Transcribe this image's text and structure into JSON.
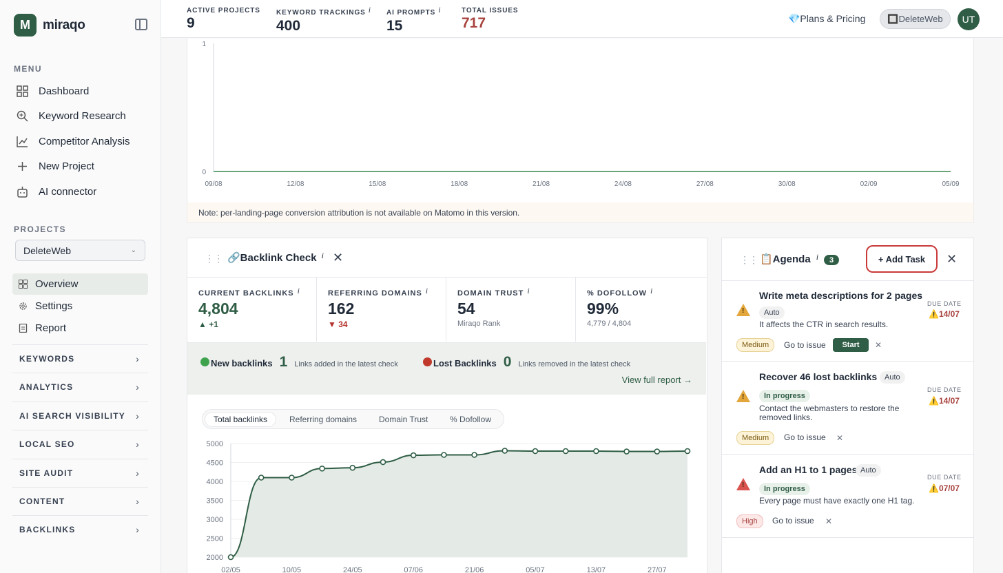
{
  "brand": {
    "logo_letter": "M",
    "name": "miraqo"
  },
  "sidebar": {
    "menu_label": "MENU",
    "menu": [
      {
        "label": "Dashboard",
        "icon": "grid-icon"
      },
      {
        "label": "Keyword Research",
        "icon": "search-icon"
      },
      {
        "label": "Competitor Analysis",
        "icon": "chart-line-icon"
      },
      {
        "label": "New Project",
        "icon": "plus-icon"
      },
      {
        "label": "AI connector",
        "icon": "bot-icon"
      }
    ],
    "projects_label": "PROJECTS",
    "project_selected": "DeleteWeb",
    "project_items": [
      {
        "label": "Overview",
        "active": true
      },
      {
        "label": "Settings",
        "active": false
      },
      {
        "label": "Report",
        "active": false
      }
    ],
    "groups": [
      "KEYWORDS",
      "ANALYTICS",
      "AI SEARCH VISIBILITY",
      "LOCAL SEO",
      "SITE AUDIT",
      "CONTENT",
      "BACKLINKS"
    ]
  },
  "topbar": {
    "stats": [
      {
        "label": "ACTIVE PROJECTS",
        "value": "9",
        "info": ""
      },
      {
        "label": "KEYWORD TRACKINGS",
        "value": "400",
        "info": "i"
      },
      {
        "label": "AI PROMPTS",
        "value": "15",
        "info": "i"
      },
      {
        "label": "TOTAL ISSUES",
        "value": "717",
        "info": ""
      }
    ],
    "plans": "💎Plans & Pricing",
    "site": "🔲DeleteWeb",
    "avatar": "UT"
  },
  "conv_chart": {
    "y_ticks": [
      "1",
      "0"
    ],
    "x_ticks": [
      "09/08",
      "12/08",
      "15/08",
      "18/08",
      "21/08",
      "24/08",
      "27/08",
      "30/08",
      "02/09",
      "05/09"
    ],
    "values": [
      0,
      0,
      0,
      0,
      0,
      0,
      0,
      0,
      0,
      0
    ]
  },
  "note": "Note: per-landing-page conversion attribution is not available on Matomo in this version.",
  "backlinks": {
    "title": "🔗Backlink Check",
    "info": "i",
    "metrics": [
      {
        "label": "CURRENT BACKLINKS",
        "value": "4,804",
        "sub": "▲ +1",
        "info": "i"
      },
      {
        "label": "REFERRING DOMAINS",
        "value": "162",
        "sub": "▼ 34",
        "info": "i"
      },
      {
        "label": "DOMAIN TRUST",
        "value": "54",
        "sub": "Miraqo Rank",
        "info": "i"
      },
      {
        "label": "% DOFOLLOW",
        "value": "99%",
        "sub": "4,779 / 4,804",
        "info": "i"
      }
    ],
    "new_label": "New backlinks",
    "new_count": "1",
    "new_desc": "Links added in the latest check",
    "lost_label": "Lost Backlinks",
    "lost_count": "0",
    "lost_desc": "Links removed in the latest check",
    "view_report": "View full report →",
    "tabs": [
      "Total backlinks",
      "Referring domains",
      "Domain Trust",
      "% Dofollow"
    ],
    "colors": {
      "accent": "#2f5d45",
      "new_dot": "#3fa34d",
      "lost_dot": "#c0392b"
    }
  },
  "chart_data": {
    "type": "area",
    "x": [
      "02/05",
      "",
      "",
      "",
      "",
      "",
      "",
      "",
      "",
      "",
      "",
      "",
      "",
      "",
      "",
      ""
    ],
    "x_tick_labels": [
      "02/05",
      "10/05",
      "24/05",
      "07/06",
      "21/06",
      "05/07",
      "13/07",
      "27/07"
    ],
    "values": [
      2000,
      4100,
      4100,
      4340,
      4360,
      4510,
      4690,
      4700,
      4700,
      4810,
      4800,
      4800,
      4800,
      4790,
      4790,
      4800
    ],
    "ylim": [
      2000,
      5000
    ],
    "y_ticks": [
      "5000",
      "4500",
      "4000",
      "3500",
      "3000",
      "2500",
      "2000"
    ]
  },
  "agenda": {
    "title": "📋Agenda",
    "info": "i",
    "count": "3",
    "add_task": "+ Add Task",
    "due_label": "DUE DATE",
    "tasks": [
      {
        "title": "Write meta descriptions for 2 pages",
        "tag": "Auto",
        "desc": "It affects the CTR in search results.",
        "priority": "Medium",
        "goto": "Go to issue",
        "start": "Start",
        "due": "⚠️14/07"
      },
      {
        "title": "Recover 46 lost backlinks",
        "tag": "Auto",
        "status": "In progress",
        "desc": "Contact the webmasters to restore the removed links.",
        "priority": "Medium",
        "goto": "Go to issue",
        "due": "⚠️14/07"
      },
      {
        "title": "Add an H1 to 1 pages",
        "tag": "Auto",
        "status": "In progress",
        "desc": "Every page must have exactly one H1 tag.",
        "priority": "High",
        "goto": "Go to issue",
        "due": "⚠️07/07"
      }
    ]
  }
}
